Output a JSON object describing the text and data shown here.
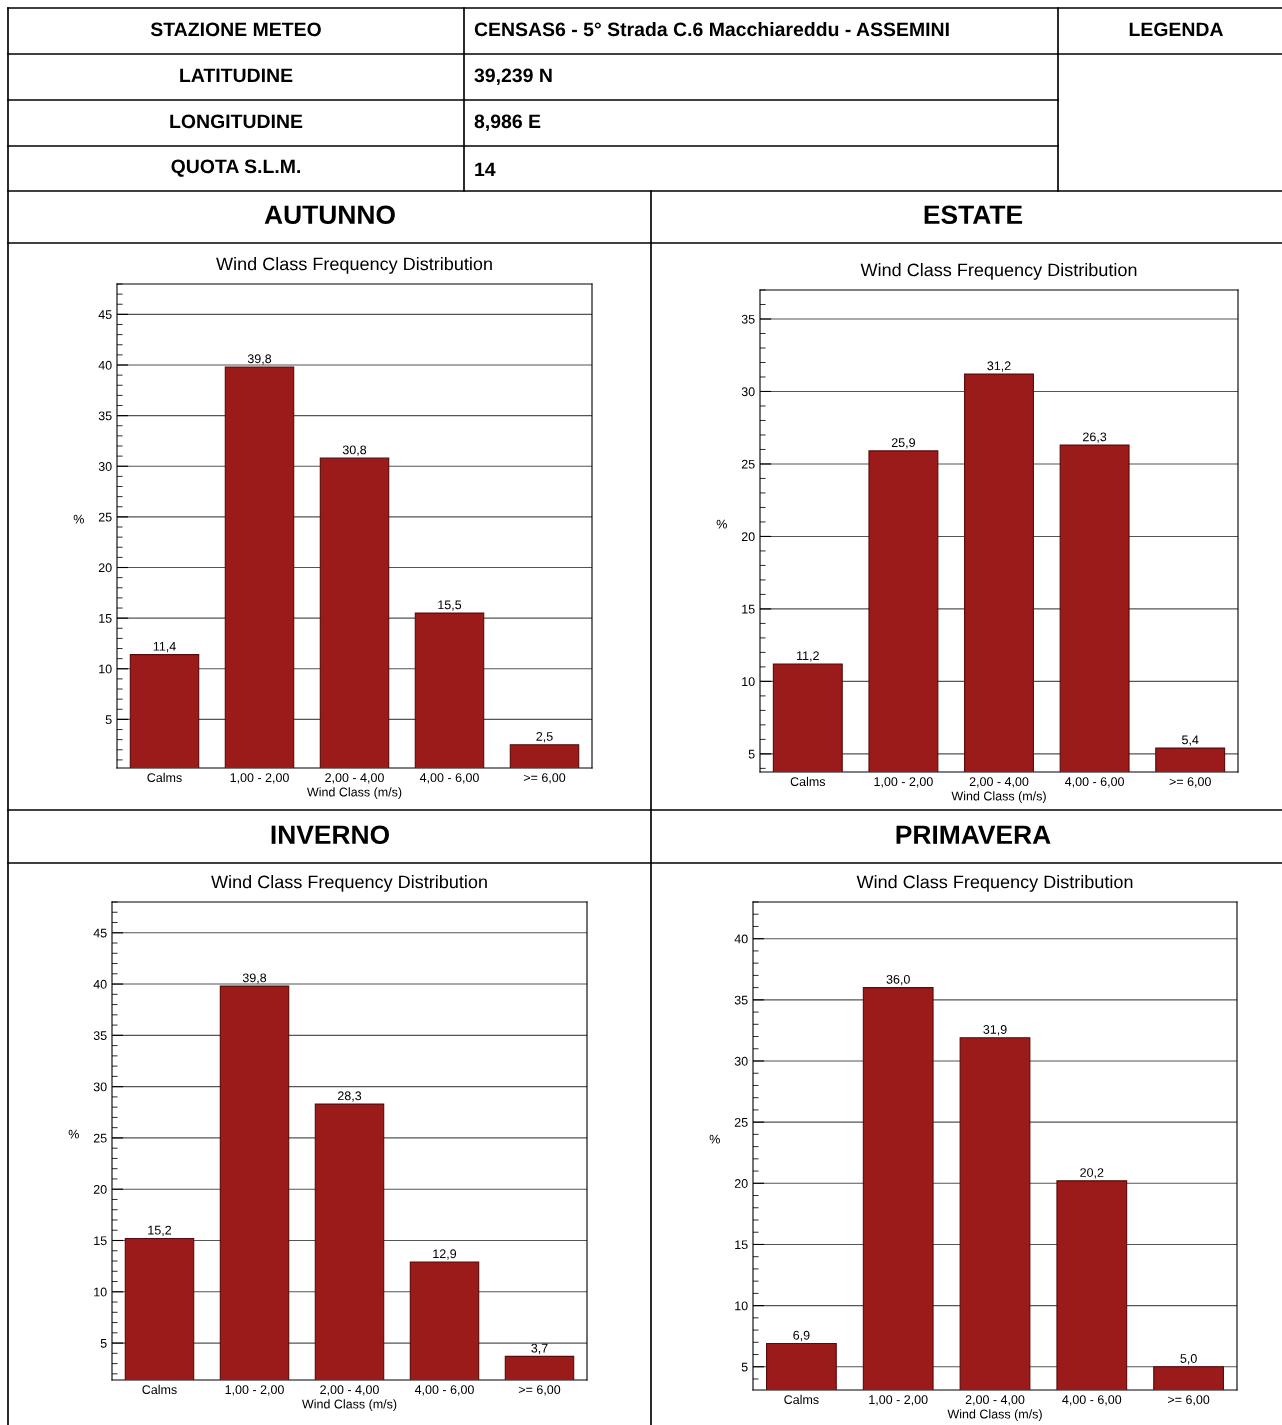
{
  "chart_data": [
    {
      "type": "other",
      "annotations": [
        "STAZIONE METEO",
        "CENSAS6 - 5° Strada C.6 Macchiareddu - ASSEMINI",
        "LEGENDA",
        "LATITUDINE",
        "39,239 N",
        "LONGITUDINE",
        "8,986 E",
        "QUOTA S.L.M.",
        "14"
      ]
    },
    {
      "type": "bar",
      "title": "AUTUNNO",
      "subtitle": "Wind Class Frequency Distribution",
      "xlabel": "Wind Class (m/s)",
      "ylabel": "%",
      "categories": [
        "Calms",
        "1,00 - 2,00",
        "2,00 - 4,00",
        "4,00 - 6,00",
        ">= 6,00"
      ],
      "values": [
        11.4,
        39.8,
        30.8,
        15.5,
        2.5
      ],
      "value_labels": [
        "11,4",
        "39,8",
        "30,8",
        "15,5",
        "2,5"
      ],
      "color": "#9b1b1b",
      "ylim": [
        0.2,
        48
      ],
      "yticks": [
        5,
        10,
        15,
        20,
        25,
        30,
        35,
        40,
        45
      ],
      "grid": "y",
      "legend": false
    },
    {
      "type": "bar",
      "title": "ESTATE",
      "subtitle": "Wind Class Frequency Distribution",
      "xlabel": "Wind Class (m/s)",
      "ylabel": "%",
      "categories": [
        "Calms",
        "1,00 - 2,00",
        "2,00 - 4,00",
        "4,00 - 6,00",
        ">= 6,00"
      ],
      "values": [
        11.2,
        25.9,
        31.2,
        26.3,
        5.4
      ],
      "value_labels": [
        "11,2",
        "25,9",
        "31,2",
        "26,3",
        "5,4"
      ],
      "color": "#9b1b1b",
      "ylim": [
        3.75,
        37
      ],
      "yticks": [
        5,
        10,
        15,
        20,
        25,
        30,
        35
      ],
      "grid": "y",
      "legend": false
    },
    {
      "type": "bar",
      "title": "INVERNO",
      "subtitle": "Wind Class Frequency Distribution",
      "xlabel": "Wind Class (m/s)",
      "ylabel": "%",
      "categories": [
        "Calms",
        "1,00 - 2,00",
        "2,00 - 4,00",
        "4,00 - 6,00",
        ">= 6,00"
      ],
      "values": [
        15.2,
        39.8,
        28.3,
        12.9,
        3.7
      ],
      "value_labels": [
        "15,2",
        "39,8",
        "28,3",
        "12,9",
        "3,7"
      ],
      "color": "#9b1b1b",
      "ylim": [
        1.4,
        48
      ],
      "yticks": [
        5,
        10,
        15,
        20,
        25,
        30,
        35,
        40,
        45
      ],
      "grid": "y",
      "legend": false
    },
    {
      "type": "bar",
      "title": "PRIMAVERA",
      "subtitle": "Wind Class Frequency Distribution",
      "xlabel": "Wind Class (m/s)",
      "ylabel": "%",
      "categories": [
        "Calms",
        "1,00 - 2,00",
        "2,00 - 4,00",
        "4,00 - 6,00",
        ">= 6,00"
      ],
      "values": [
        6.9,
        36.0,
        31.9,
        20.2,
        5.0
      ],
      "value_labels": [
        "6,9",
        "36,0",
        "31,9",
        "20,2",
        "5,0"
      ],
      "color": "#9b1b1b",
      "ylim": [
        3.1,
        43
      ],
      "yticks": [
        5,
        10,
        15,
        20,
        25,
        30,
        35,
        40
      ],
      "grid": "y",
      "legend": false
    }
  ]
}
